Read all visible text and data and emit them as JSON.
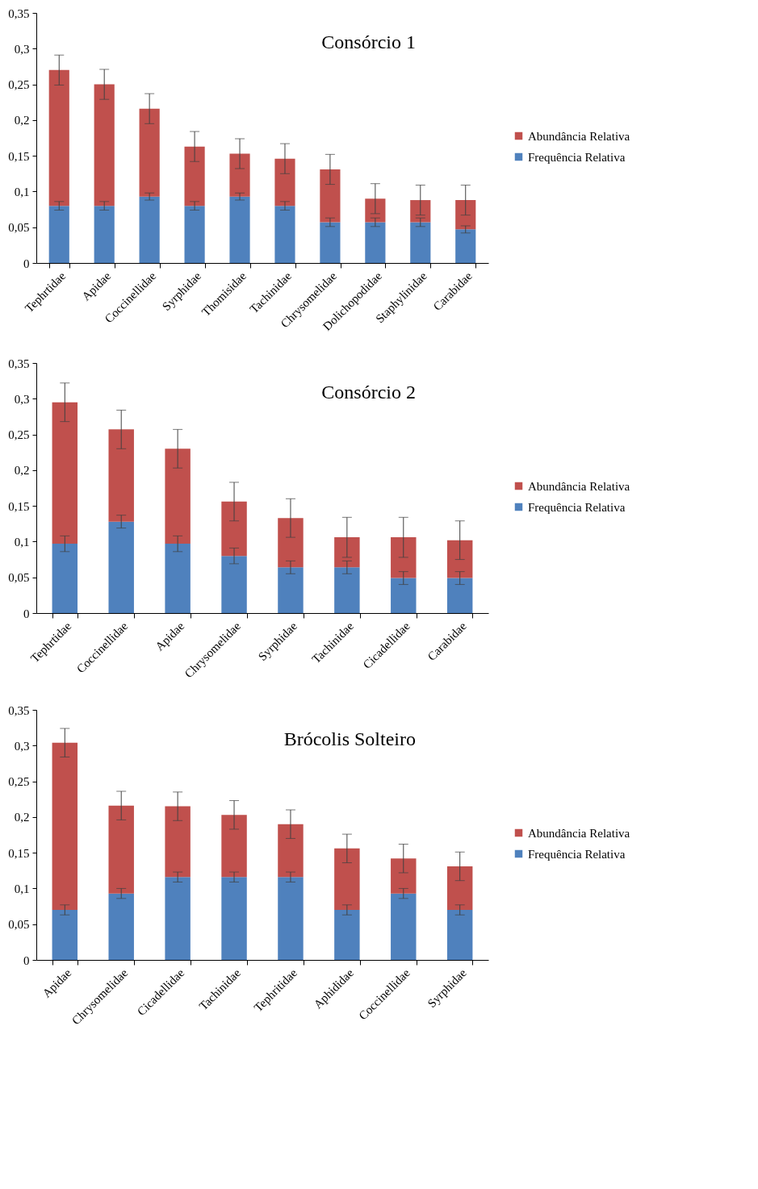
{
  "chart_data": [
    {
      "type": "bar",
      "title": "Consórcio  1",
      "stacked": true,
      "legend": "right",
      "categories": [
        "Tephrtidae",
        "Apidae",
        "Coccinellidae",
        "Syrphidae",
        "Thomisidae",
        "Tachinidae",
        "Chrysomelidae",
        "Dolichopodidae",
        "Staphylinidae",
        "Carabidae"
      ],
      "ylim": [
        0,
        0.35
      ],
      "yticks": [
        {
          "value": 0,
          "label": "0"
        },
        {
          "value": 0.05,
          "label": "0,05"
        },
        {
          "value": 0.1,
          "label": "0,1"
        },
        {
          "value": 0.15,
          "label": "0,15"
        },
        {
          "value": 0.2,
          "label": "0,2"
        },
        {
          "value": 0.25,
          "label": "0,25"
        },
        {
          "value": 0.3,
          "label": "0,3"
        },
        {
          "value": 0.35,
          "label": "0,35"
        }
      ],
      "series": [
        {
          "name": "Frequência Relativa",
          "color": "#4f81bd",
          "values": [
            0.08,
            0.08,
            0.093,
            0.08,
            0.093,
            0.08,
            0.057,
            0.057,
            0.057,
            0.047
          ],
          "errors": [
            0.006,
            0.006,
            0.005,
            0.006,
            0.005,
            0.006,
            0.006,
            0.006,
            0.006,
            0.005
          ]
        },
        {
          "name": "Abundância Relativa",
          "color": "#c0504d",
          "values": [
            0.19,
            0.17,
            0.123,
            0.083,
            0.06,
            0.066,
            0.074,
            0.033,
            0.031,
            0.041
          ],
          "errors": [
            0.021,
            0.021,
            0.021,
            0.021,
            0.021,
            0.021,
            0.021,
            0.021,
            0.021,
            0.021
          ]
        }
      ]
    },
    {
      "type": "bar",
      "title": "Consórcio  2",
      "stacked": true,
      "legend": "right",
      "categories": [
        "Tephrtidae",
        "Coccinellidae",
        "Apidae",
        "Chrysomelidae",
        "Syrphidae",
        "Tachinidae",
        "Cicadellidae",
        "Carabidae"
      ],
      "ylim": [
        0,
        0.35
      ],
      "yticks": [
        {
          "value": 0,
          "label": "0"
        },
        {
          "value": 0.05,
          "label": "0,05"
        },
        {
          "value": 0.1,
          "label": "0,1"
        },
        {
          "value": 0.15,
          "label": "0,15"
        },
        {
          "value": 0.2,
          "label": "0,2"
        },
        {
          "value": 0.25,
          "label": "0,25"
        },
        {
          "value": 0.3,
          "label": "0,3"
        },
        {
          "value": 0.35,
          "label": "0,35"
        }
      ],
      "series": [
        {
          "name": "Frequência Relativa",
          "color": "#4f81bd",
          "values": [
            0.097,
            0.128,
            0.097,
            0.08,
            0.064,
            0.064,
            0.049,
            0.049
          ],
          "errors": [
            0.011,
            0.009,
            0.011,
            0.011,
            0.009,
            0.009,
            0.009,
            0.009
          ]
        },
        {
          "name": "Abundância Relativa",
          "color": "#c0504d",
          "values": [
            0.198,
            0.129,
            0.133,
            0.076,
            0.069,
            0.042,
            0.057,
            0.053
          ],
          "errors": [
            0.027,
            0.027,
            0.027,
            0.027,
            0.027,
            0.028,
            0.028,
            0.027
          ]
        }
      ]
    },
    {
      "type": "bar",
      "title": "Brócolis  Solteiro",
      "stacked": true,
      "legend": "right",
      "categories": [
        "Apidae",
        "Chrysomelidae",
        "Cicadellidae",
        "Tachinidae",
        "Tephritidae",
        "Aphididae",
        "Coccinellidae",
        "Syrphidae"
      ],
      "ylim": [
        0,
        0.35
      ],
      "yticks": [
        {
          "value": 0,
          "label": "0"
        },
        {
          "value": 0.05,
          "label": "0,05"
        },
        {
          "value": 0.1,
          "label": "0,1"
        },
        {
          "value": 0.15,
          "label": "0,15"
        },
        {
          "value": 0.2,
          "label": "0,2"
        },
        {
          "value": 0.25,
          "label": "0,25"
        },
        {
          "value": 0.3,
          "label": "0,3"
        },
        {
          "value": 0.35,
          "label": "0,35"
        }
      ],
      "series": [
        {
          "name": "Frequência Relativa",
          "color": "#4f81bd",
          "values": [
            0.07,
            0.093,
            0.116,
            0.116,
            0.116,
            0.07,
            0.093,
            0.07
          ],
          "errors": [
            0.007,
            0.007,
            0.007,
            0.007,
            0.007,
            0.007,
            0.007,
            0.007
          ]
        },
        {
          "name": "Abundância Relativa",
          "color": "#c0504d",
          "values": [
            0.234,
            0.123,
            0.099,
            0.087,
            0.074,
            0.086,
            0.049,
            0.061
          ],
          "errors": [
            0.02,
            0.02,
            0.02,
            0.02,
            0.02,
            0.02,
            0.02,
            0.02
          ]
        }
      ]
    }
  ]
}
